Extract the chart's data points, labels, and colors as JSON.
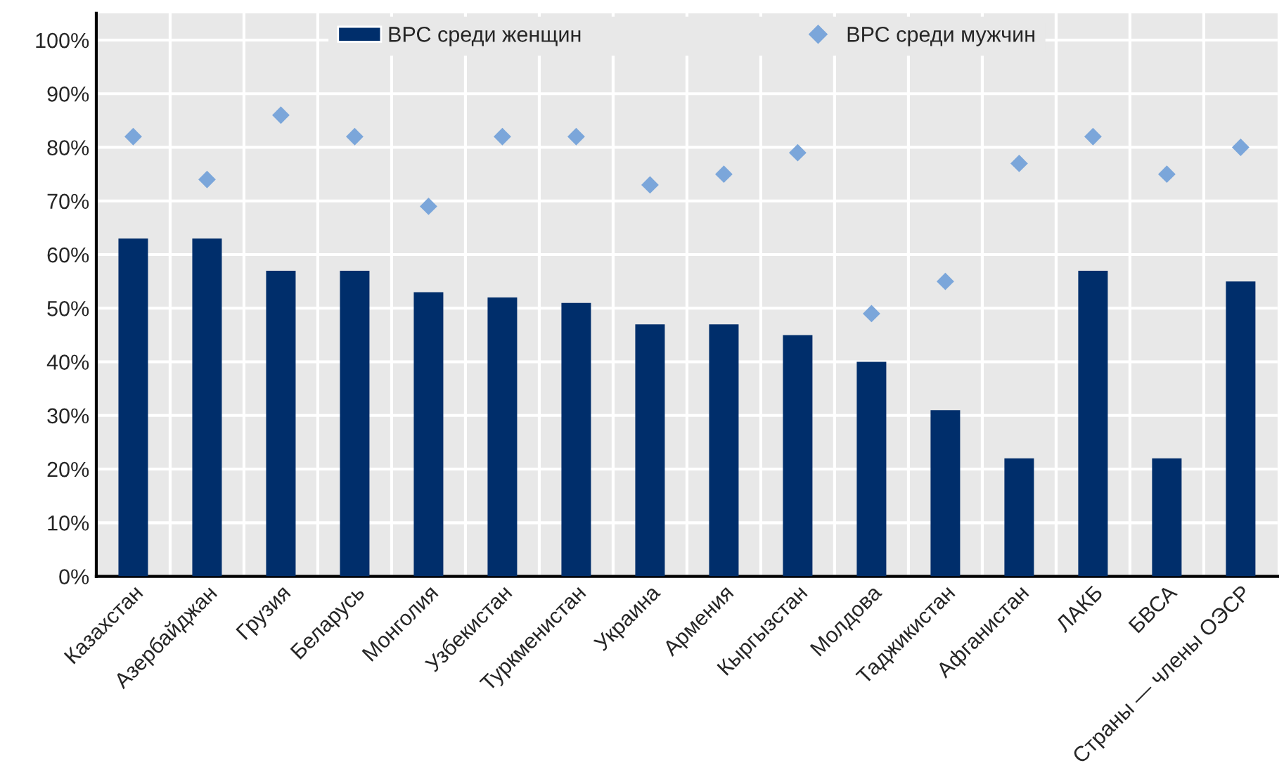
{
  "chart_data": {
    "type": "bar",
    "categories": [
      "Казахстан",
      "Азербайджан",
      "Грузия",
      "Беларусь",
      "Монголия",
      "Узбекистан",
      "Туркменистан",
      "Украина",
      "Армения",
      "Кыргызстан",
      "Молдова",
      "Таджикистан",
      "Афганистан",
      "ЛАКБ",
      "БВСА",
      "Страны — члены ОЭСР"
    ],
    "series": [
      {
        "name": "ВРС среди женщин",
        "color": "#002e6b",
        "values": [
          63,
          63,
          57,
          57,
          53,
          52,
          51,
          47,
          47,
          45,
          40,
          31,
          22,
          57,
          22,
          55
        ]
      },
      {
        "name": "ВРС среди мужчин",
        "type": "scatter",
        "marker": "diamond",
        "color": "#7ba6da",
        "values": [
          82,
          74,
          86,
          82,
          69,
          82,
          82,
          73,
          75,
          79,
          49,
          55,
          77,
          82,
          75,
          80
        ]
      }
    ],
    "ylim": [
      0,
      105
    ],
    "yticks": [
      {
        "value": 0,
        "label": "0%"
      },
      {
        "value": 10,
        "label": "10%"
      },
      {
        "value": 20,
        "label": "20%"
      },
      {
        "value": 30,
        "label": "30%"
      },
      {
        "value": 40,
        "label": "40%"
      },
      {
        "value": 50,
        "label": "50%"
      },
      {
        "value": 60,
        "label": "60%"
      },
      {
        "value": 70,
        "label": "70%"
      },
      {
        "value": 80,
        "label": "80%"
      },
      {
        "value": 90,
        "label": "90%"
      },
      {
        "value": 100,
        "label": "100%"
      }
    ],
    "grid": true,
    "legend": "top"
  }
}
